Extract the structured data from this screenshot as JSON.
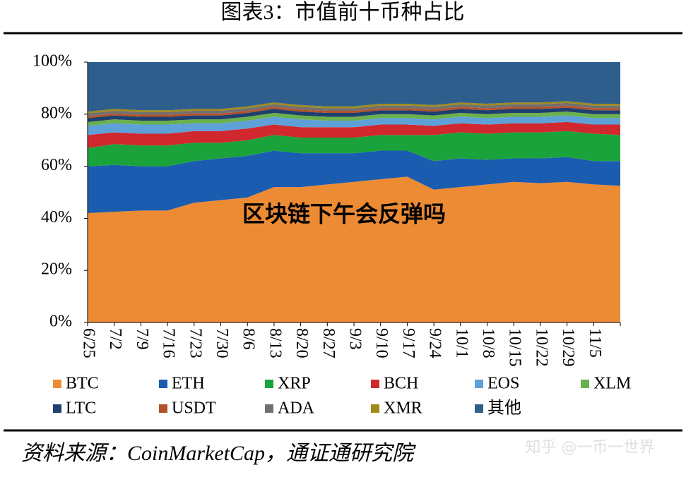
{
  "chart_data": {
    "type": "stacked-area",
    "title": "图表3：市值前十币种占比",
    "source": "资料来源：CoinMarketCap，通证通研究院",
    "annotations": [
      "区块链下午会反弹吗",
      "知乎 @一币一世界"
    ],
    "categories": [
      "6/25",
      "7/2",
      "7/9",
      "7/16",
      "7/23",
      "7/30",
      "8/6",
      "8/13",
      "8/20",
      "8/27",
      "9/3",
      "9/10",
      "9/17",
      "9/24",
      "10/1",
      "10/8",
      "10/15",
      "10/22",
      "10/29",
      "11/5",
      null
    ],
    "ylim": [
      0,
      100
    ],
    "yticks": [
      {
        "value": 0,
        "label": "0%"
      },
      {
        "value": 20,
        "label": "20%"
      },
      {
        "value": 40,
        "label": "40%"
      },
      {
        "value": 60,
        "label": "60%"
      },
      {
        "value": 80,
        "label": "80%"
      },
      {
        "value": 100,
        "label": "100%"
      }
    ],
    "grid": false,
    "series": [
      {
        "name": "BTC",
        "color": "#ed8b34",
        "values": [
          42,
          42.5,
          43,
          43,
          46,
          47,
          48,
          52,
          52,
          53,
          54,
          55,
          56,
          51,
          52,
          53,
          54,
          53.5,
          54,
          53,
          52.5
        ]
      },
      {
        "name": "ETH",
        "color": "#1a5cb0",
        "values": [
          18,
          18,
          17,
          17,
          16,
          16,
          16,
          14,
          13,
          12,
          11,
          11,
          10,
          11,
          11,
          9.5,
          9,
          9.5,
          9.5,
          9,
          9.5
        ]
      },
      {
        "name": "XRP",
        "color": "#1ba33b",
        "values": [
          7,
          8,
          8,
          8,
          7,
          6,
          6,
          6,
          6,
          6,
          6,
          6,
          6,
          10,
          10,
          10,
          10,
          10,
          10,
          10.5,
          10
        ]
      },
      {
        "name": "BCH",
        "color": "#d0282e",
        "values": [
          5,
          4.5,
          4.5,
          4.5,
          4.5,
          4.5,
          4.5,
          4,
          4,
          4,
          4,
          4,
          4,
          3.5,
          3.5,
          3.5,
          3.5,
          3.5,
          3.5,
          3.5,
          4
        ]
      },
      {
        "name": "EOS",
        "color": "#5ea0d8",
        "values": [
          3.5,
          3.5,
          3.5,
          3.5,
          3,
          3,
          3,
          3,
          3,
          2.5,
          2.5,
          2.5,
          2.5,
          2.5,
          2.5,
          2.5,
          2.5,
          2.5,
          2.5,
          2.5,
          2.5
        ]
      },
      {
        "name": "XLM",
        "color": "#6ab04c",
        "values": [
          1.5,
          1.5,
          1.5,
          1.5,
          1.5,
          1.5,
          1.5,
          1.5,
          1.5,
          1.5,
          1.5,
          1.5,
          1.5,
          1.5,
          1.5,
          1.5,
          1.5,
          1.5,
          1.5,
          1.5,
          1.5
        ]
      },
      {
        "name": "LTC",
        "color": "#1f3f6e",
        "values": [
          1.5,
          1.5,
          1.5,
          1.5,
          1.5,
          1.5,
          1.5,
          1.5,
          1.5,
          1.5,
          1.5,
          1.5,
          1.5,
          1.5,
          1.5,
          1.5,
          1.5,
          1.5,
          1.5,
          1.5,
          1.5
        ]
      },
      {
        "name": "USDT",
        "color": "#b3522a",
        "values": [
          0.8,
          0.8,
          0.8,
          0.8,
          0.8,
          0.8,
          0.8,
          0.8,
          0.8,
          0.8,
          0.8,
          0.8,
          0.8,
          0.8,
          0.8,
          0.8,
          0.8,
          0.8,
          0.8,
          0.8,
          0.8
        ]
      },
      {
        "name": "ADA",
        "color": "#707070",
        "values": [
          1,
          1,
          1,
          1,
          1,
          1,
          1,
          1,
          1,
          1,
          1,
          1,
          1,
          1,
          1,
          1,
          1,
          1,
          1,
          1,
          1
        ]
      },
      {
        "name": "XMR",
        "color": "#a08a1a",
        "values": [
          0.7,
          0.7,
          0.7,
          0.7,
          0.7,
          0.7,
          0.7,
          0.7,
          0.7,
          0.7,
          0.7,
          0.7,
          0.7,
          0.7,
          0.7,
          0.7,
          0.7,
          0.7,
          0.7,
          0.7,
          0.7
        ]
      },
      {
        "name": "其他",
        "color": "#2e5f8c",
        "values": [
          19,
          18,
          18.5,
          18.5,
          18,
          18,
          17,
          15.5,
          16.5,
          17,
          17,
          16,
          16,
          16.5,
          15.5,
          16,
          15.5,
          15.5,
          15,
          16,
          16
        ]
      }
    ]
  }
}
